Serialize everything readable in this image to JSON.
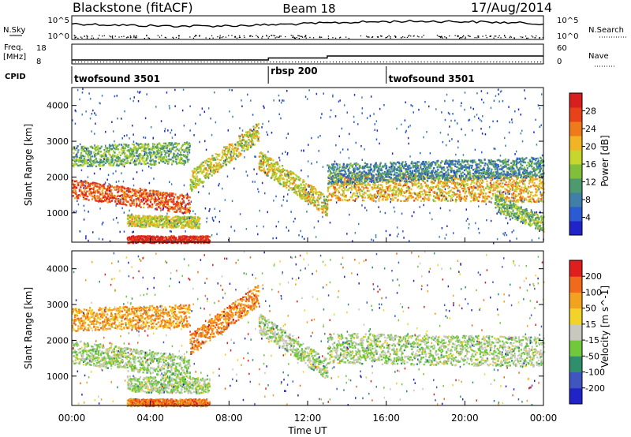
{
  "header": {
    "station_title": "Blackstone (fitACF)",
    "beam": "Beam 18",
    "date": "17/Aug/2014"
  },
  "summary": {
    "nsky_label": "N.Sky",
    "nsky_ticks": [
      "10^5",
      "10^0"
    ],
    "nsearch_label": "N.Search",
    "nsearch_ticks": [
      "10^5",
      "10^0"
    ],
    "freq_label": "Freq.",
    "freq_unit": "[MHz]",
    "freq_ticks": [
      "18",
      "8"
    ],
    "nave_label": "Nave",
    "nave_ticks": [
      "60",
      "0"
    ],
    "cpid_label": "CPID",
    "cpid_segments": [
      {
        "name": "twofsound 3501",
        "start_hour": 0,
        "end_hour": 10
      },
      {
        "name": "rbsp 200",
        "start_hour": 10,
        "end_hour": 16
      },
      {
        "name": "twofsound 3501",
        "start_hour": 16,
        "end_hour": 24
      }
    ],
    "freq_steps": [
      {
        "start_hour": 0,
        "end_hour": 10,
        "value": 10
      },
      {
        "start_hour": 10,
        "end_hour": 13,
        "value": 11
      },
      {
        "start_hour": 13,
        "end_hour": 16,
        "value": 12
      },
      {
        "start_hour": 16,
        "end_hour": 24,
        "value": 12
      }
    ]
  },
  "chart_data": [
    {
      "type": "heatmap",
      "ylabel": "Slant Range [km]",
      "ylim": [
        180,
        4500
      ],
      "yticks": [
        1000,
        2000,
        3000,
        4000
      ],
      "xlim": [
        0,
        24
      ],
      "colorbar": {
        "label": "Power [dB]",
        "range": [
          0,
          32
        ],
        "ticks": [
          "4",
          "8",
          "12",
          "16",
          "20",
          "24",
          "28"
        ],
        "colors": [
          "#1f23c8",
          "#2a5bd2",
          "#3f7fa8",
          "#4c9a6e",
          "#7fbf3a",
          "#c6d62c",
          "#f2b324",
          "#ef7a1c",
          "#e8421a",
          "#d81f1f"
        ]
      },
      "bands": [
        {
          "t0": 0,
          "t1": 6,
          "r0": 1700,
          "r1": 1250,
          "w": 260,
          "level": 0.82
        },
        {
          "t0": 6,
          "t1": 9.5,
          "r0": 1900,
          "r1": 3300,
          "w": 280,
          "level": 0.55
        },
        {
          "t0": 9.5,
          "t1": 13,
          "r0": 2500,
          "r1": 1200,
          "w": 280,
          "level": 0.58
        },
        {
          "t0": 0,
          "t1": 6,
          "r0": 2600,
          "r1": 2700,
          "w": 300,
          "level": 0.42
        },
        {
          "t0": 13,
          "t1": 24,
          "r0": 1750,
          "r1": 1700,
          "w": 380,
          "level": 0.65
        },
        {
          "t0": 13,
          "t1": 24,
          "r0": 2100,
          "r1": 2300,
          "w": 280,
          "level": 0.3
        },
        {
          "t0": 2.8,
          "t1": 6.5,
          "r0": 800,
          "r1": 750,
          "w": 160,
          "level": 0.55
        },
        {
          "t0": 2.8,
          "t1": 7,
          "r0": 280,
          "r1": 280,
          "w": 100,
          "level": 0.95
        },
        {
          "t0": 21.5,
          "t1": 24,
          "r0": 1300,
          "r1": 700,
          "w": 220,
          "level": 0.45
        }
      ]
    },
    {
      "type": "heatmap",
      "ylabel": "Slant Range [km]",
      "xlabel": "Time UT",
      "ylim": [
        180,
        4500
      ],
      "yticks": [
        1000,
        2000,
        3000,
        4000
      ],
      "xlim": [
        0,
        24
      ],
      "xticks": [
        "00:00",
        "04:00",
        "08:00",
        "12:00",
        "16:00",
        "20:00",
        "00:00"
      ],
      "colorbar": {
        "label": "Velocity [m s^-1]",
        "range": [
          -250,
          250
        ],
        "ticks": [
          "200",
          "100",
          "50",
          "15",
          "-15",
          "-50",
          "-100",
          "-200"
        ],
        "colors": [
          "#1f23c8",
          "#3f55c0",
          "#2f8f6a",
          "#6fc93a",
          "#c8c8c0",
          "#f2d32a",
          "#f2a21e",
          "#ef6a1a",
          "#e01e1e"
        ]
      },
      "bands": [
        {
          "t0": 0,
          "t1": 6,
          "r0": 1700,
          "r1": 1250,
          "w": 320,
          "level": 0.45
        },
        {
          "t0": 6,
          "t1": 9.5,
          "r0": 1900,
          "r1": 3300,
          "w": 300,
          "level": 0.78
        },
        {
          "t0": 9.5,
          "t1": 13,
          "r0": 2500,
          "r1": 1200,
          "w": 280,
          "level": 0.45
        },
        {
          "t0": 0,
          "t1": 6,
          "r0": 2600,
          "r1": 2700,
          "w": 320,
          "level": 0.72
        },
        {
          "t0": 13,
          "t1": 24,
          "r0": 1800,
          "r1": 1700,
          "w": 420,
          "level": 0.45
        },
        {
          "t0": 2.8,
          "t1": 7,
          "r0": 800,
          "r1": 750,
          "w": 220,
          "level": 0.45
        },
        {
          "t0": 2.8,
          "t1": 7,
          "r0": 280,
          "r1": 280,
          "w": 100,
          "level": 0.8
        }
      ]
    }
  ]
}
